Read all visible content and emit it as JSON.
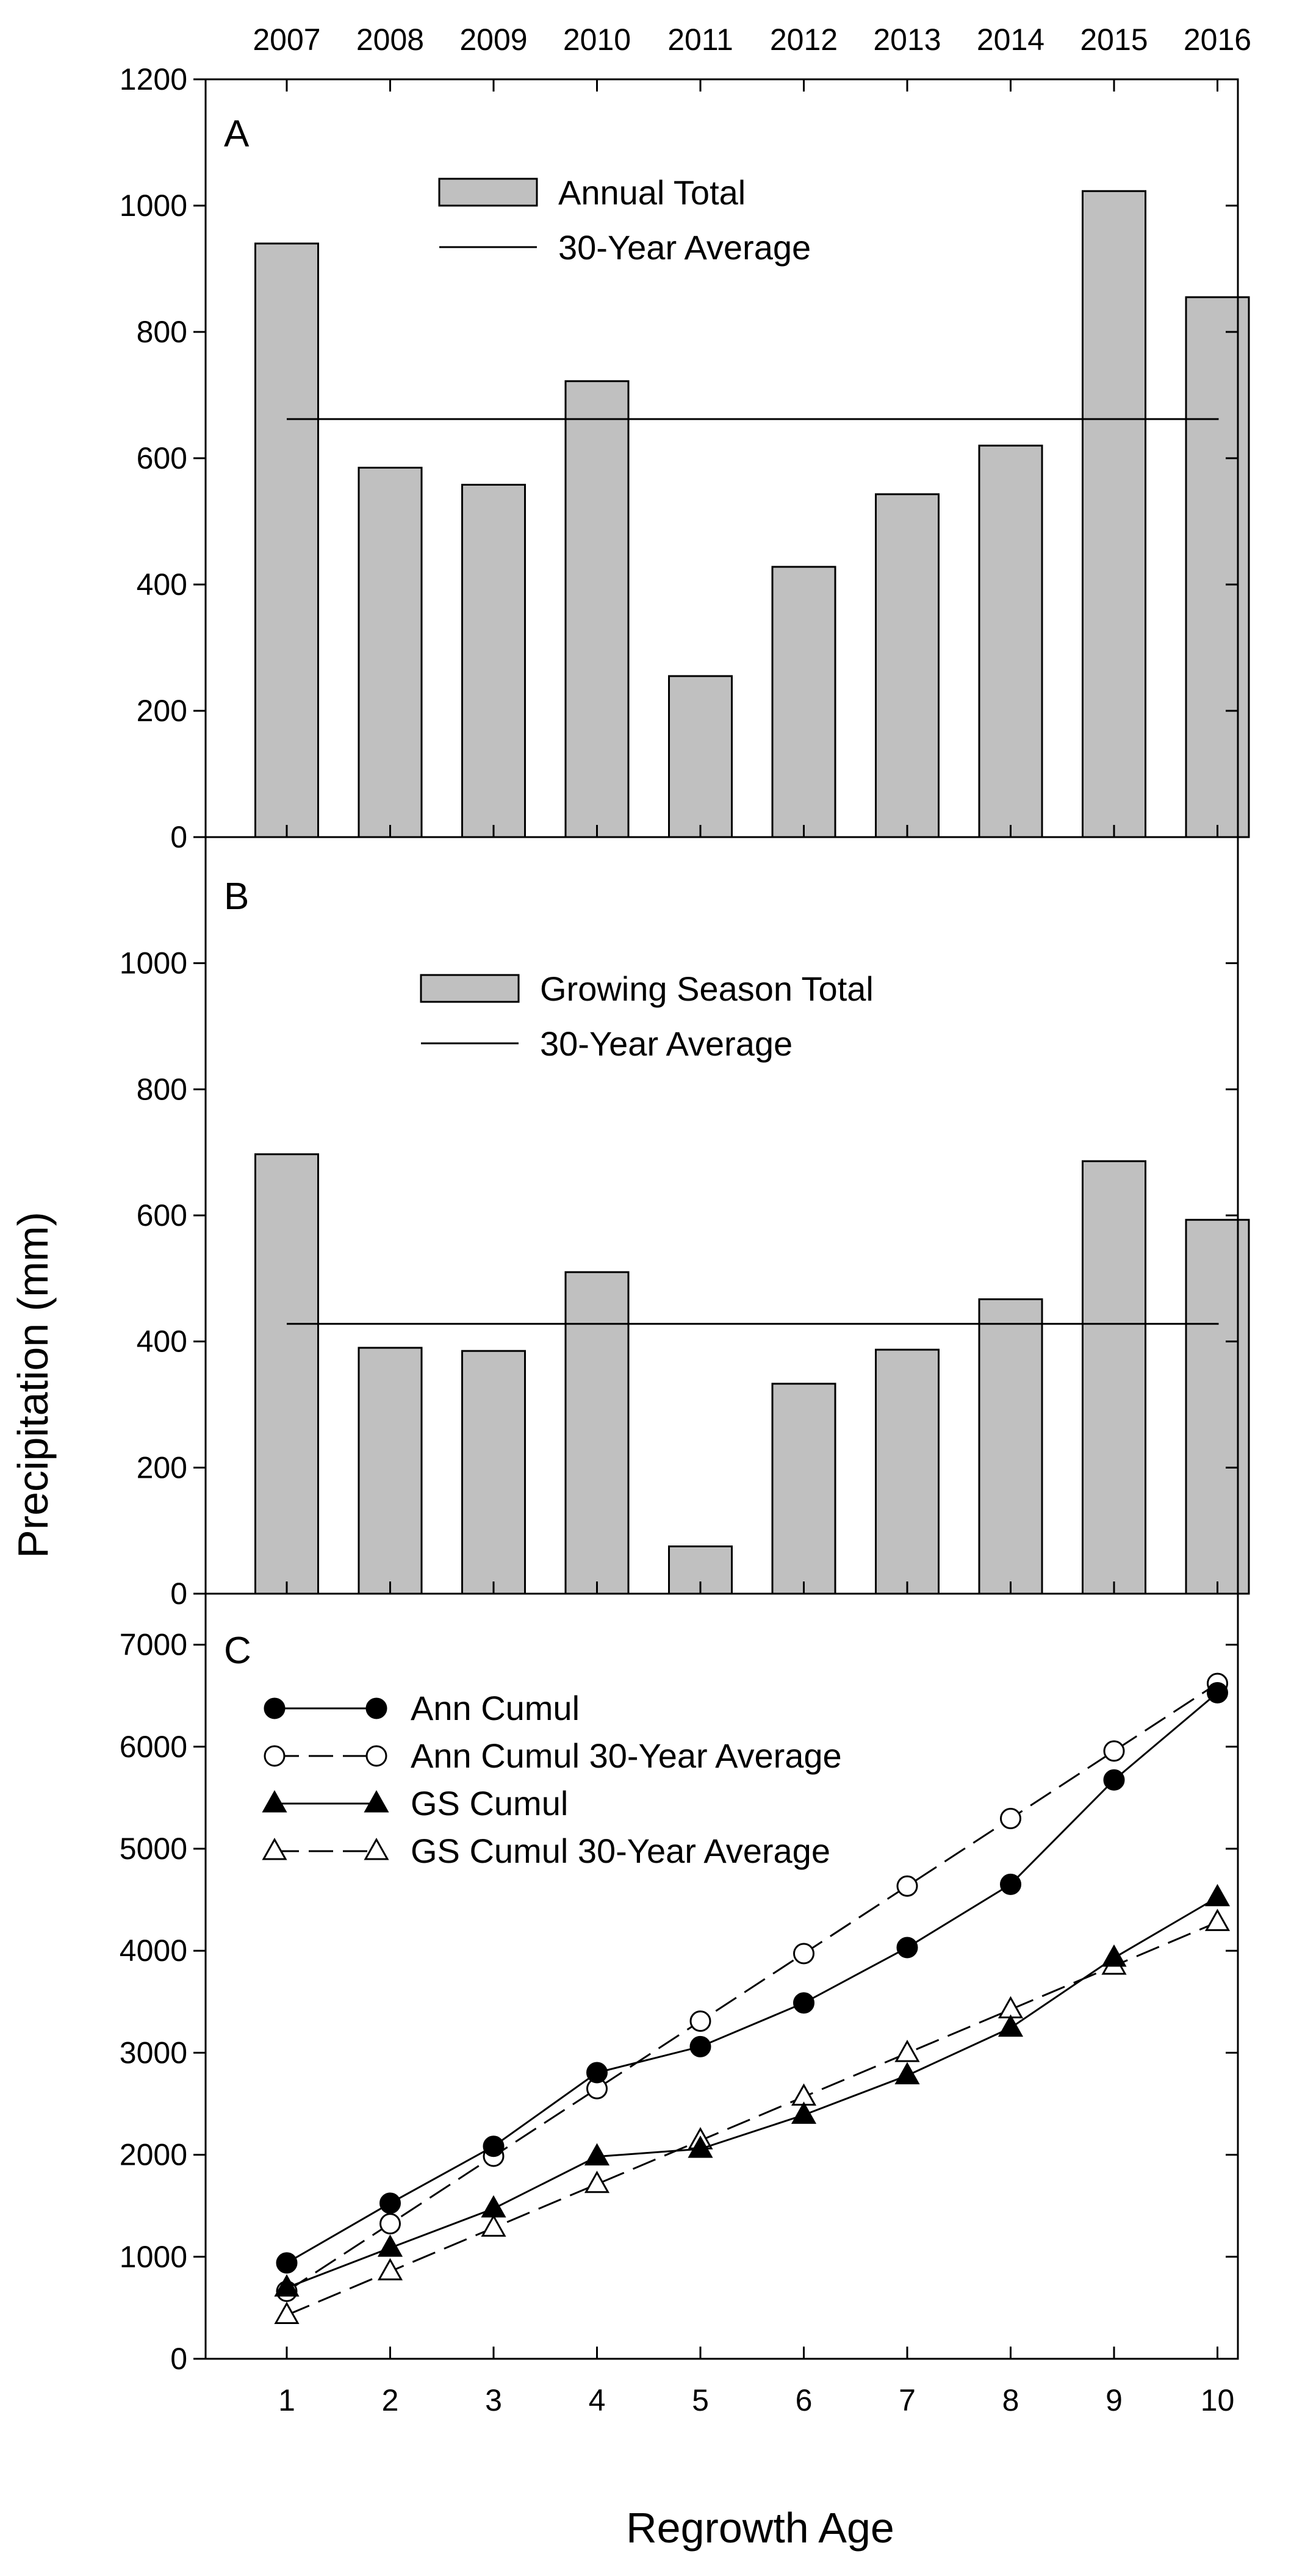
{
  "figure": {
    "ylabel": "Precipitation (mm)",
    "xlabel": "Regrowth Age",
    "years": [
      "2007",
      "2008",
      "2009",
      "2010",
      "2011",
      "2012",
      "2013",
      "2014",
      "2015",
      "2016"
    ],
    "regrowth_ages": [
      "1",
      "2",
      "3",
      "4",
      "5",
      "6",
      "7",
      "8",
      "9",
      "10"
    ]
  },
  "chart_data": [
    {
      "type": "bar",
      "panel": "A",
      "categories": [
        "2007",
        "2008",
        "2009",
        "2010",
        "2011",
        "2012",
        "2013",
        "2014",
        "2015",
        "2016"
      ],
      "series": [
        {
          "name": "Annual Total",
          "values": [
            940,
            585,
            558,
            722,
            255,
            428,
            543,
            620,
            1023,
            855
          ]
        }
      ],
      "reference_line": {
        "name": "30-Year Average",
        "value": 662
      },
      "ylim": [
        0,
        1200
      ],
      "yticks": [
        "0",
        "200",
        "400",
        "600",
        "800",
        "1000",
        "1200"
      ],
      "legend": [
        "Annual Total",
        "30-Year Average"
      ],
      "bar_color": "#c0c0c0"
    },
    {
      "type": "bar",
      "panel": "B",
      "categories": [
        "2007",
        "2008",
        "2009",
        "2010",
        "2011",
        "2012",
        "2013",
        "2014",
        "2015",
        "2016"
      ],
      "series": [
        {
          "name": "Growing Season Total",
          "values": [
            697,
            390,
            385,
            510,
            75,
            333,
            387,
            467,
            686,
            593
          ]
        }
      ],
      "reference_line": {
        "name": "30-Year Average",
        "value": 428
      },
      "ylim": [
        0,
        1200
      ],
      "yticks": [
        "0",
        "200",
        "400",
        "600",
        "800",
        "1000"
      ],
      "legend": [
        "Growing Season Total",
        "30-Year Average"
      ],
      "bar_color": "#c0c0c0"
    },
    {
      "type": "line",
      "panel": "C",
      "x": [
        1,
        2,
        3,
        4,
        5,
        6,
        7,
        8,
        9,
        10
      ],
      "series": [
        {
          "name": "Ann Cumul",
          "values": [
            940,
            1525,
            2083,
            2805,
            3060,
            3488,
            4031,
            4651,
            5674,
            6529
          ],
          "marker": "filled-circle",
          "dash": "solid"
        },
        {
          "name": "Ann Cumul 30-Year Average",
          "values": [
            662,
            1324,
            1986,
            2648,
            3310,
            3972,
            4634,
            5296,
            5958,
            6620
          ],
          "marker": "open-circle",
          "dash": "dashed"
        },
        {
          "name": "GS Cumul",
          "values": [
            697,
            1087,
            1472,
            1982,
            2057,
            2390,
            2777,
            3244,
            3930,
            4523
          ],
          "marker": "filled-triangle",
          "dash": "solid"
        },
        {
          "name": "GS Cumul 30-Year Average",
          "values": [
            428,
            856,
            1284,
            1712,
            2140,
            2568,
            2996,
            3424,
            3852,
            4280
          ],
          "marker": "open-triangle",
          "dash": "dashed"
        }
      ],
      "ylim": [
        0,
        7500
      ],
      "yticks": [
        "0",
        "1000",
        "2000",
        "3000",
        "4000",
        "5000",
        "6000",
        "7000"
      ],
      "xlim": [
        0.5,
        10.5
      ]
    }
  ]
}
